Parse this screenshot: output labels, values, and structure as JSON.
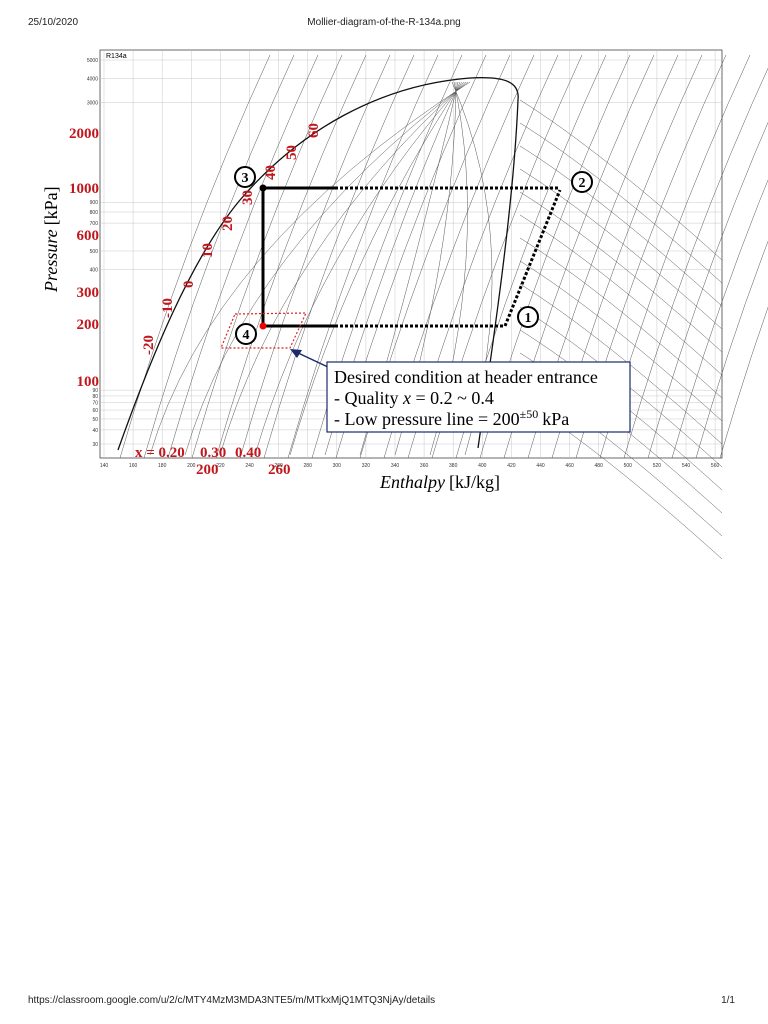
{
  "header": {
    "date": "25/10/2020",
    "title": "Mollier-diagram-of-the-R-134a.png"
  },
  "figure": {
    "chart_name": "R134a",
    "pressure_ticks": [
      5000,
      4000,
      3000,
      900,
      800,
      700,
      500,
      400,
      90,
      80,
      70,
      60,
      50,
      40,
      30
    ],
    "enthalpy_ticks": [
      140,
      160,
      180,
      200,
      220,
      240,
      260,
      280,
      300,
      320,
      340,
      360,
      380,
      400,
      420,
      440,
      460,
      480,
      500,
      520,
      540,
      560
    ],
    "pressure_title": "Pressure",
    "pressure_unit": "[kPa]",
    "pressure_labels": [
      "2000",
      "1000",
      "600",
      "300",
      "200",
      "100"
    ],
    "temperature_labels": [
      "-20",
      "-10",
      "0",
      "10",
      "20",
      "30",
      "40",
      "50",
      "60"
    ],
    "quality_label": "x = 0.20",
    "quality_more": [
      "0.30",
      "0.40"
    ],
    "enthalpy_labels": [
      "200",
      "260"
    ],
    "enthalpy_title": "Enthalpy",
    "enthalpy_unit": "[kJ/kg]",
    "points": [
      "1",
      "2",
      "3",
      "4"
    ],
    "callout": {
      "line1": "Desired condition at header entrance",
      "line2_a": "- Quality ",
      "line2_b": "x",
      "line2_c": " = 0.2 ~ 0.4",
      "line3_a": "- Low pressure line = 200",
      "line3_b": "±50",
      "line3_c": "kPa"
    }
  },
  "footer": {
    "url": "https://classroom.google.com/u/2/c/MTY4MzM3MDA3NTE5/m/MTkxMjQ1MTQ3NjAy/details",
    "page": "1/1"
  }
}
